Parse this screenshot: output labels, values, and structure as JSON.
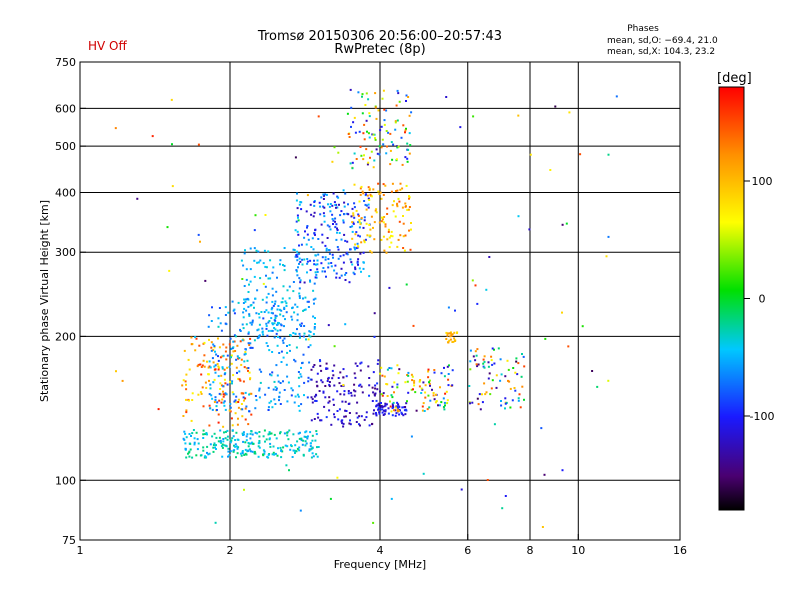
{
  "status": {
    "hv_label": "HV Off",
    "hv_color": "#d00000"
  },
  "title": {
    "line1": "Tromsø 20150306 20:56:00–20:57:43",
    "line2": "RwPretec (8p)"
  },
  "phase_box": {
    "title": "Phases",
    "line_o": "mean, sd,O: −69.4, 21.0",
    "line_x": "mean, sd,X: 104.3, 23.2"
  },
  "chart_data": {
    "type": "scatter",
    "xlabel": "Frequency [MHz]",
    "ylabel": "Stationary phase Virtual Height [km]",
    "xscale": "log",
    "yscale": "log",
    "xlim": [
      1,
      16
    ],
    "ylim": [
      75,
      750
    ],
    "xticks": [
      1,
      2,
      4,
      6,
      8,
      10,
      16
    ],
    "yticks": [
      75,
      100,
      200,
      300,
      400,
      500,
      600,
      750
    ],
    "x_gridlines": [
      2,
      4,
      6,
      8,
      10
    ],
    "y_gridlines": [
      100,
      200,
      300,
      400,
      500,
      600
    ],
    "grid": true,
    "colorbar": {
      "label": "[deg]",
      "ticks": [
        100,
        0,
        -100
      ],
      "range": [
        -180,
        180
      ],
      "colormap": "rainbow (black → purple → blue → cyan → green → yellow → orange → red)"
    },
    "clusters": [
      {
        "x_range": [
          1.6,
          3.0
        ],
        "y_range": [
          112,
          128
        ],
        "phase_range": [
          -60,
          -10
        ],
        "count": 260
      },
      {
        "x_range": [
          1.6,
          2.2
        ],
        "y_range": [
          130,
          200
        ],
        "phase_range": [
          60,
          170
        ],
        "count": 150
      },
      {
        "x_range": [
          1.8,
          2.9
        ],
        "y_range": [
          140,
          240
        ],
        "phase_range": [
          -90,
          -30
        ],
        "count": 260
      },
      {
        "x_range": [
          2.1,
          3.0
        ],
        "y_range": [
          200,
          310
        ],
        "phase_range": [
          -70,
          -30
        ],
        "count": 170
      },
      {
        "x_range": [
          2.7,
          3.8
        ],
        "y_range": [
          260,
          400
        ],
        "phase_range": [
          -130,
          -40
        ],
        "count": 220
      },
      {
        "x_range": [
          2.9,
          4.0
        ],
        "y_range": [
          130,
          180
        ],
        "phase_range": [
          -150,
          -90
        ],
        "count": 150
      },
      {
        "x_range": [
          3.5,
          4.6
        ],
        "y_range": [
          300,
          420
        ],
        "phase_range": [
          60,
          150
        ],
        "count": 120
      },
      {
        "x_range": [
          3.4,
          4.6
        ],
        "y_range": [
          450,
          660
        ],
        "phase_range": [
          -140,
          160
        ],
        "count": 110
      },
      {
        "x_range": [
          3.9,
          4.5
        ],
        "y_range": [
          137,
          146
        ],
        "phase_range": [
          -130,
          -90
        ],
        "count": 60
      },
      {
        "x_range": [
          4.0,
          5.6
        ],
        "y_range": [
          140,
          175
        ],
        "phase_range": [
          -160,
          170
        ],
        "count": 110
      },
      {
        "x_range": [
          5.4,
          5.7
        ],
        "y_range": [
          195,
          205
        ],
        "phase_range": [
          80,
          120
        ],
        "count": 25
      },
      {
        "x_range": [
          6.0,
          7.8
        ],
        "y_range": [
          140,
          190
        ],
        "phase_range": [
          -160,
          160
        ],
        "count": 80
      },
      {
        "x_range": [
          1.1,
          12.5
        ],
        "y_range": [
          80,
          650
        ],
        "phase_range": [
          -170,
          170
        ],
        "count": 100
      }
    ]
  }
}
